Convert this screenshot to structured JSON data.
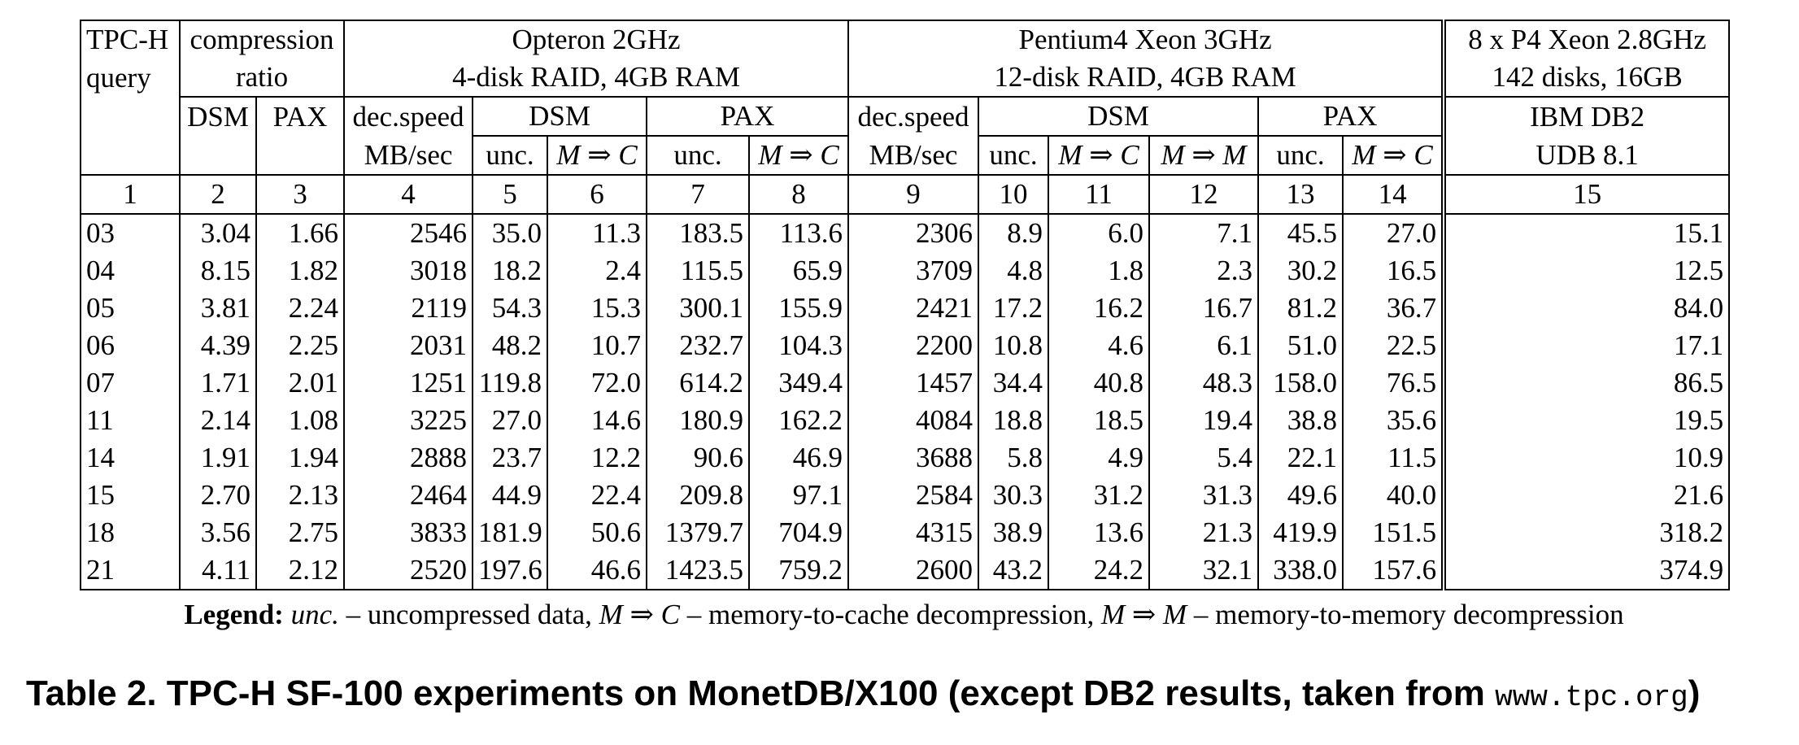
{
  "table": {
    "h_query_1": "TPC-H",
    "h_query_2": "query",
    "h_comp_1": "compression",
    "h_comp_2": "ratio",
    "h_opt_1": "Opteron 2GHz",
    "h_opt_2": "4-disk RAID, 4GB RAM",
    "h_p4_1": "Pentium4 Xeon 3GHz",
    "h_p4_2": "12-disk RAID, 4GB RAM",
    "h_8x_1": "8 x P4 Xeon 2.8GHz",
    "h_8x_2": "142 disks, 16GB",
    "h_dsm": "DSM",
    "h_pax": "PAX",
    "h_decspeed": "dec.speed",
    "h_mbsec": "MB/sec",
    "h_unc": "unc.",
    "h_mc": "M ⇒ C",
    "h_mm": "M ⇒ M",
    "h_ibm_1": "IBM DB2",
    "h_ibm_2": "UDB 8.1",
    "colnums": [
      "1",
      "2",
      "3",
      "4",
      "5",
      "6",
      "7",
      "8",
      "9",
      "10",
      "11",
      "12",
      "13",
      "14",
      "15"
    ],
    "rows": [
      [
        "03",
        "3.04",
        "1.66",
        "2546",
        "35.0",
        "11.3",
        "183.5",
        "113.6",
        "2306",
        "8.9",
        "6.0",
        "7.1",
        "45.5",
        "27.0",
        "15.1"
      ],
      [
        "04",
        "8.15",
        "1.82",
        "3018",
        "18.2",
        "2.4",
        "115.5",
        "65.9",
        "3709",
        "4.8",
        "1.8",
        "2.3",
        "30.2",
        "16.5",
        "12.5"
      ],
      [
        "05",
        "3.81",
        "2.24",
        "2119",
        "54.3",
        "15.3",
        "300.1",
        "155.9",
        "2421",
        "17.2",
        "16.2",
        "16.7",
        "81.2",
        "36.7",
        "84.0"
      ],
      [
        "06",
        "4.39",
        "2.25",
        "2031",
        "48.2",
        "10.7",
        "232.7",
        "104.3",
        "2200",
        "10.8",
        "4.6",
        "6.1",
        "51.0",
        "22.5",
        "17.1"
      ],
      [
        "07",
        "1.71",
        "2.01",
        "1251",
        "119.8",
        "72.0",
        "614.2",
        "349.4",
        "1457",
        "34.4",
        "40.8",
        "48.3",
        "158.0",
        "76.5",
        "86.5"
      ],
      [
        "11",
        "2.14",
        "1.08",
        "3225",
        "27.0",
        "14.6",
        "180.9",
        "162.2",
        "4084",
        "18.8",
        "18.5",
        "19.4",
        "38.8",
        "35.6",
        "19.5"
      ],
      [
        "14",
        "1.91",
        "1.94",
        "2888",
        "23.7",
        "12.2",
        "90.6",
        "46.9",
        "3688",
        "5.8",
        "4.9",
        "5.4",
        "22.1",
        "11.5",
        "10.9"
      ],
      [
        "15",
        "2.70",
        "2.13",
        "2464",
        "44.9",
        "22.4",
        "209.8",
        "97.1",
        "2584",
        "30.3",
        "31.2",
        "31.3",
        "49.6",
        "40.0",
        "21.6"
      ],
      [
        "18",
        "3.56",
        "2.75",
        "3833",
        "181.9",
        "50.6",
        "1379.7",
        "704.9",
        "4315",
        "38.9",
        "13.6",
        "21.3",
        "419.9",
        "151.5",
        "318.2"
      ],
      [
        "21",
        "4.11",
        "2.12",
        "2520",
        "197.6",
        "46.6",
        "1423.5",
        "759.2",
        "2600",
        "43.2",
        "24.2",
        "32.1",
        "338.0",
        "157.6",
        "374.9"
      ]
    ]
  },
  "legend": {
    "label": "Legend:",
    "unc": "unc.",
    "t1": " – uncompressed data, ",
    "mc": "M ⇒ C",
    "t2": " – memory-to-cache decompression, ",
    "mm": "M ⇒ M",
    "t3": " – memory-to-memory decompression"
  },
  "caption": {
    "text": "Table 2. TPC-H SF-100 experiments on MonetDB/X100 (except DB2 results, taken from ",
    "mono": "www.tpc.org",
    "close": ")"
  }
}
